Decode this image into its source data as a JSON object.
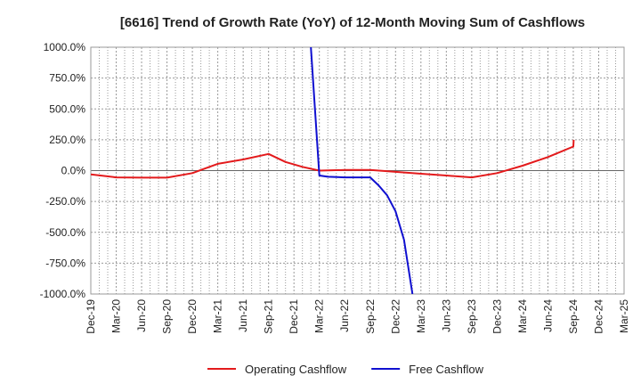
{
  "chart_data": {
    "type": "line",
    "title": "[6616]  Trend of Growth Rate (YoY) of 12-Month Moving Sum of Cashflows",
    "xlabel": "",
    "ylabel": "",
    "ylim": [
      -1000,
      1000
    ],
    "yticks": [
      "1000.0%",
      "750.0%",
      "500.0%",
      "250.0%",
      "0.0%",
      "-250.0%",
      "-500.0%",
      "-750.0%",
      "-1000.0%"
    ],
    "ytick_values": [
      1000,
      750,
      500,
      250,
      0,
      -250,
      -500,
      -750,
      -1000
    ],
    "xticks": [
      "Dec-19",
      "Mar-20",
      "Jun-20",
      "Sep-20",
      "Dec-20",
      "Mar-21",
      "Jun-21",
      "Sep-21",
      "Dec-21",
      "Mar-22",
      "Jun-22",
      "Sep-22",
      "Dec-22",
      "Mar-23",
      "Jun-23",
      "Sep-23",
      "Dec-23",
      "Mar-24",
      "Jun-24",
      "Sep-24",
      "Dec-24",
      "Mar-25"
    ],
    "grid": true,
    "legend_position": "bottom",
    "series": [
      {
        "name": "Operating Cashflow",
        "color": "#e31a1c",
        "points": [
          [
            "Dec-19",
            -30
          ],
          [
            "Mar-20",
            -55
          ],
          [
            "Jun-20",
            -57
          ],
          [
            "Sep-20",
            -57
          ],
          [
            "Dec-20",
            -20
          ],
          [
            "Jan-21",
            5
          ],
          [
            "Mar-21",
            55
          ],
          [
            "Jun-21",
            90
          ],
          [
            "Sep-21",
            135
          ],
          [
            "Nov-21",
            70
          ],
          [
            "Jan-22",
            30
          ],
          [
            "Mar-22",
            0
          ],
          [
            "Jun-22",
            5
          ],
          [
            "Sep-22",
            5
          ],
          [
            "Dec-22",
            -10
          ],
          [
            "Mar-23",
            -25
          ],
          [
            "Jun-23",
            -40
          ],
          [
            "Sep-23",
            -55
          ],
          [
            "Dec-23",
            -20
          ],
          [
            "Mar-24",
            40
          ],
          [
            "Jun-24",
            110
          ],
          [
            "Sep-24",
            195
          ],
          [
            "Sep-24b",
            250
          ]
        ]
      },
      {
        "name": "Free Cashflow",
        "color": "#1010d0",
        "points": [
          [
            "Feb-22",
            1000
          ],
          [
            "Mar-22",
            -40
          ],
          [
            "Apr-22",
            -50
          ],
          [
            "Jun-22",
            -55
          ],
          [
            "Sep-22",
            -55
          ],
          [
            "Oct-22",
            -120
          ],
          [
            "Nov-22",
            -200
          ],
          [
            "Dec-22",
            -330
          ],
          [
            "Jan-23",
            -560
          ],
          [
            "Feb-23",
            -1000
          ]
        ]
      }
    ]
  }
}
